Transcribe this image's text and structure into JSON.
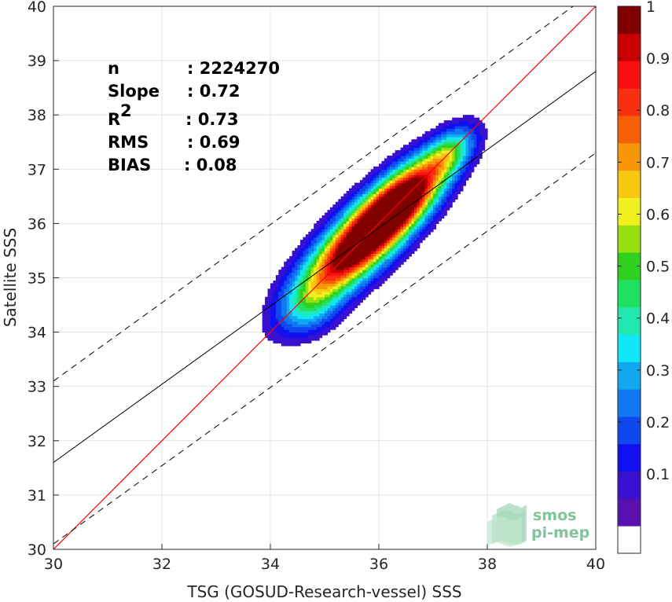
{
  "chart_data": {
    "type": "heatmap",
    "subtype": "density-contour-scatter",
    "xlabel": "TSG (GOSUD-Research-vessel) SSS",
    "ylabel": "Satellite SSS",
    "xlim": [
      30,
      40
    ],
    "ylim": [
      30,
      40
    ],
    "xticks": [
      "30",
      "32",
      "34",
      "36",
      "38",
      "40"
    ],
    "yticks": [
      "30",
      "31",
      "32",
      "33",
      "34",
      "35",
      "36",
      "37",
      "38",
      "39",
      "40"
    ],
    "grid": true,
    "stats": [
      {
        "label": "n",
        "value": ": 2224270"
      },
      {
        "label": "Slope",
        "value": ": 0.72"
      },
      {
        "label": "R",
        "sup": "2",
        "value": ": 0.73"
      },
      {
        "label": "RMS",
        "value": ": 0.69"
      },
      {
        "label": "BIAS",
        "value": ": 0.08"
      }
    ],
    "lines": {
      "identity": {
        "slope": 1,
        "intercept": 0,
        "color": "#ff0000"
      },
      "regression": {
        "x0": 30,
        "y0": 31.6,
        "x1": 40,
        "y1": 38.8,
        "color": "#000000"
      },
      "upper_bound": {
        "x0": 30,
        "y0": 33.1,
        "x1": 40,
        "y1": 40.3,
        "color": "#000000",
        "dash": true
      },
      "lower_bound": {
        "x0": 30,
        "y0": 30.1,
        "x1": 40,
        "y1": 37.3,
        "color": "#000000",
        "dash": true
      }
    },
    "density_peaks": [
      {
        "x": 35.55,
        "y": 35.55,
        "value": 1.0
      },
      {
        "x": 36.4,
        "y": 36.4,
        "value": 0.97
      },
      {
        "x": 37.3,
        "y": 37.3,
        "value": 0.35
      }
    ],
    "colorbar": {
      "min": 0,
      "max": 1,
      "ticks": [
        "0.1",
        "0.2",
        "0.3",
        "0.4",
        "0.5",
        "0.6",
        "0.7",
        "0.8",
        "0.9",
        "1"
      ],
      "levels": [
        "#ffffff",
        "#5a0fb0",
        "#3a10d0",
        "#1010f0",
        "#1048f0",
        "#1078f0",
        "#10a8f0",
        "#10e8f8",
        "#20e8b0",
        "#20e060",
        "#30d020",
        "#98e010",
        "#f0f020",
        "#f8c810",
        "#f89808",
        "#f86008",
        "#f83010",
        "#f81010",
        "#c80000",
        "#800000"
      ]
    }
  },
  "logo": {
    "line1": "smos",
    "line2": "pi-mep"
  }
}
